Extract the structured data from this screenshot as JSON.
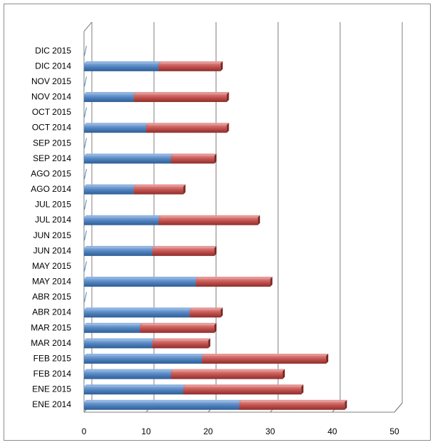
{
  "chart_data": {
    "type": "bar",
    "orientation": "horizontal",
    "stacked": true,
    "categories": [
      "ENE 2014",
      "ENE 2015",
      "FEB 2014",
      "FEB 2015",
      "MAR 2014",
      "MAR 2015",
      "ABR 2014",
      "ABR 2015",
      "MAY 2014",
      "MAY 2015",
      "JUN 2014",
      "JUN 2015",
      "JUL 2014",
      "JUL 2015",
      "AGO 2014",
      "AGO 2015",
      "SEP 2014",
      "SEP 2015",
      "OCT 2014",
      "OCT 2015",
      "NOV 2014",
      "NOV 2015",
      "DIC 2014",
      "DIC 2015"
    ],
    "series": [
      {
        "color": "#4f81bd",
        "values": [
          25,
          16,
          14,
          19,
          11,
          9,
          17,
          0,
          18,
          0,
          11,
          0,
          12,
          0,
          8,
          0,
          14,
          0,
          10,
          0,
          8,
          0,
          12,
          0
        ]
      },
      {
        "color": "#c0504d",
        "values": [
          17,
          19,
          18,
          20,
          9,
          12,
          5,
          0,
          12,
          0,
          10,
          0,
          16,
          0,
          8,
          0,
          7,
          0,
          13,
          0,
          15,
          0,
          10,
          0
        ]
      }
    ],
    "xlim": [
      0,
      50
    ],
    "x_ticks": [
      "0",
      "10",
      "20",
      "30",
      "40",
      "50"
    ],
    "grid": true,
    "legend": "none",
    "style": "3d"
  }
}
